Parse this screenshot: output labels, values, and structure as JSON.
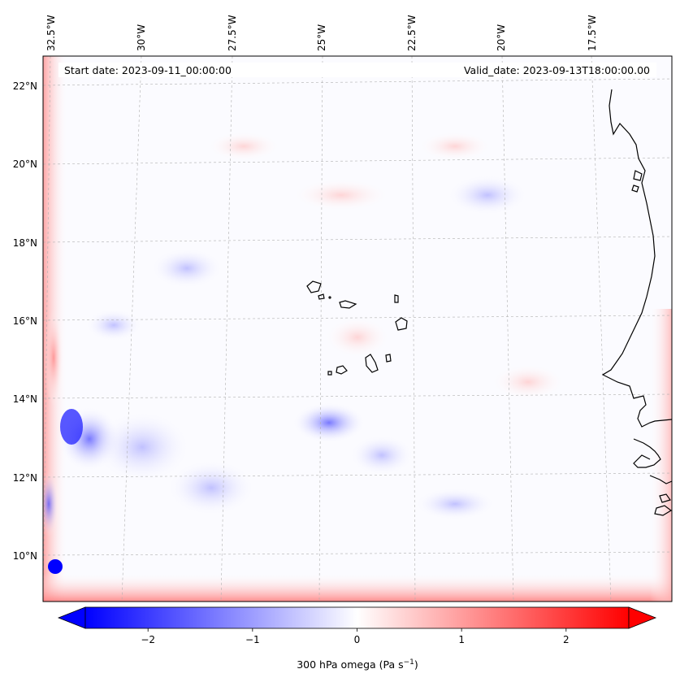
{
  "map": {
    "start_date_label": "Start date: 2023-09-11_00:00:00",
    "valid_date_label": "Valid_date: 2023-09-13T18:00:00.00",
    "lon_labels": [
      "32.5°W",
      "30°W",
      "27.5°W",
      "25°W",
      "22.5°W",
      "20°W",
      "17.5°W"
    ],
    "lat_labels": [
      "22°N",
      "20°N",
      "18°N",
      "16°N",
      "14°N",
      "12°N",
      "10°N"
    ],
    "grid": true,
    "coastlines": true
  },
  "colorbar": {
    "ticks": [
      "−2",
      "−1",
      "0",
      "1",
      "2"
    ],
    "tick_values": [
      -2,
      -1,
      0,
      1,
      2
    ],
    "range": [
      -2.6,
      2.6
    ],
    "extend": "both",
    "colormap": "bwr",
    "label_prefix": "300 hPa omega (Pa s",
    "label_exponent": "−1",
    "label_suffix": ")"
  },
  "colors": {
    "negative": "#0000ff",
    "neutral": "#ffffff",
    "positive": "#ff0000",
    "coastline": "#000000"
  }
}
